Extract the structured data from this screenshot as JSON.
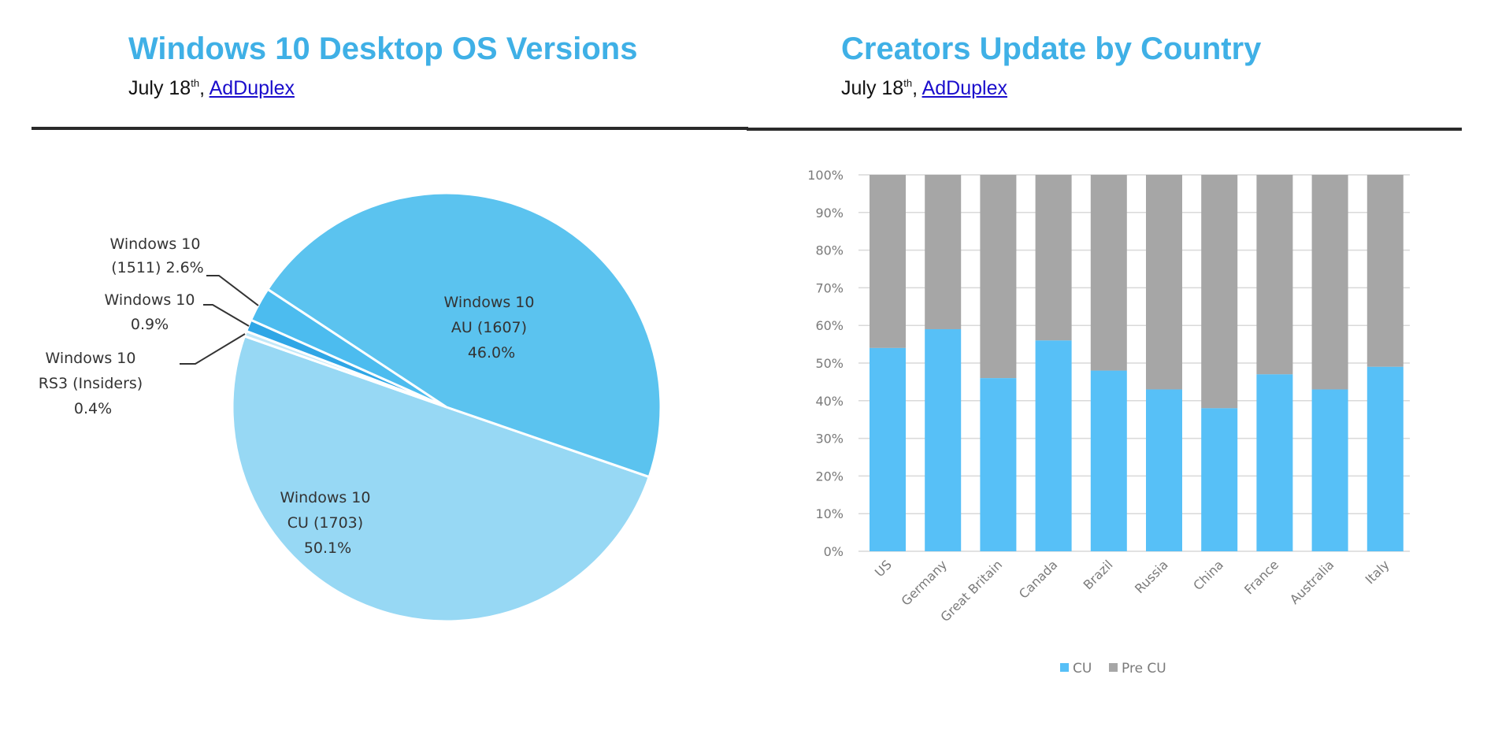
{
  "left_panel": {
    "title": "Windows 10 Desktop OS Versions",
    "subtitle_prefix": "July 18",
    "subtitle_sup": "th",
    "subtitle_sep": ", ",
    "source_link": "AdDuplex"
  },
  "right_panel": {
    "title": "Creators Update by Country",
    "subtitle_prefix": "July 18",
    "subtitle_sup": "th",
    "subtitle_sep": ", ",
    "source_link": "AdDuplex"
  },
  "colors": {
    "title": "#3fb0e6",
    "au": "#5bc3ef",
    "cu": "#97d8f4",
    "v1511": "#4cbcef",
    "v09": "#2fa6e6",
    "rs3": "#c2e8f8",
    "bar_cu": "#57c0f7",
    "bar_pre": "#a6a6a6",
    "grid": "#d9d9d9"
  },
  "pie_labels": {
    "v1511": [
      "Windows 10",
      "(1511) 2.6%"
    ],
    "v09": [
      "Windows 10",
      "0.9%"
    ],
    "rs3": [
      "Windows 10",
      "RS3 (Insiders)",
      "0.4%"
    ],
    "au": [
      "Windows 10",
      "AU (1607)",
      "46.0%"
    ],
    "cu": [
      "Windows 10",
      "CU (1703)",
      "50.1%"
    ]
  },
  "bar_axis": {
    "ticks": [
      "0%",
      "10%",
      "20%",
      "30%",
      "40%",
      "50%",
      "60%",
      "70%",
      "80%",
      "90%",
      "100%"
    ]
  },
  "legend": {
    "cu": "CU",
    "pre": "Pre CU"
  },
  "chart_data": [
    {
      "type": "pie",
      "title": "Windows 10 Desktop OS Versions",
      "subtitle": "July 18th, AdDuplex",
      "categories": [
        "Windows 10 CU (1703)",
        "Windows 10 AU (1607)",
        "Windows 10 (1511)",
        "Windows 10",
        "Windows 10 RS3 (Insiders)"
      ],
      "values": [
        50.1,
        46.0,
        2.6,
        0.9,
        0.4
      ],
      "unit": "%"
    },
    {
      "type": "bar",
      "stacked": true,
      "percent_stacked": true,
      "title": "Creators Update by Country",
      "subtitle": "July 18th, AdDuplex",
      "categories": [
        "US",
        "Germany",
        "Great Britain",
        "Canada",
        "Brazil",
        "Russia",
        "China",
        "France",
        "Australia",
        "Italy"
      ],
      "series": [
        {
          "name": "CU",
          "values": [
            54,
            59,
            46,
            56,
            48,
            43,
            38,
            47,
            43,
            49
          ]
        },
        {
          "name": "Pre CU",
          "values": [
            46,
            41,
            54,
            44,
            52,
            57,
            62,
            53,
            57,
            51
          ]
        }
      ],
      "xlabel": "",
      "ylabel": "",
      "ylim": [
        0,
        100
      ],
      "yticks": [
        "0%",
        "10%",
        "20%",
        "30%",
        "40%",
        "50%",
        "60%",
        "70%",
        "80%",
        "90%",
        "100%"
      ],
      "grid": true,
      "legend_position": "bottom"
    }
  ]
}
